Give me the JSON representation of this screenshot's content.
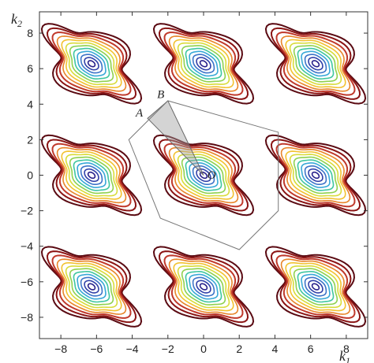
{
  "chart_data": {
    "type": "contour",
    "title": "",
    "xlabel": {
      "base": "k",
      "sub": "1"
    },
    "ylabel": {
      "base": "k",
      "sub": "2"
    },
    "xlim": [
      -9.2,
      9.2
    ],
    "ylim": [
      -9.2,
      9.2
    ],
    "xticks": [
      -8,
      -6,
      -4,
      -2,
      0,
      2,
      4,
      6,
      8
    ],
    "yticks": [
      -8,
      -6,
      -4,
      -2,
      0,
      2,
      4,
      6,
      8
    ],
    "xtick_labels": [
      "−8",
      "−6",
      "−4",
      "−2",
      "0",
      "2",
      "4",
      "6",
      "8"
    ],
    "ytick_labels": [
      "−8",
      "−6",
      "−4",
      "−2",
      "0",
      "2",
      "4",
      "6",
      "8"
    ],
    "grid": false,
    "contour_centers": [
      [
        -6.28,
        6.28
      ],
      [
        0,
        6.28
      ],
      [
        6.28,
        6.28
      ],
      [
        -6.28,
        0
      ],
      [
        0,
        0
      ],
      [
        6.28,
        0
      ],
      [
        -6.28,
        -6.28
      ],
      [
        0,
        -6.28
      ],
      [
        6.28,
        -6.28
      ]
    ],
    "contour_levels_colors": [
      "#5a0a12",
      "#8b1414",
      "#c0392b",
      "#e8852a",
      "#f2c230",
      "#d8dc3a",
      "#8fd14f",
      "#3fc6a0",
      "#38a8d8",
      "#3b73c8",
      "#3040a8",
      "#28208a"
    ],
    "brillouin_zone": {
      "vertices": [
        [
          4.19,
          2.42
        ],
        [
          -2.0,
          4.19
        ],
        [
          -4.19,
          2.0
        ],
        [
          -2.42,
          -2.42
        ],
        [
          2.0,
          -4.19
        ],
        [
          4.19,
          -2.0
        ]
      ]
    },
    "irreducible_wedge": {
      "vertices": [
        [
          0,
          0
        ],
        [
          -2.0,
          4.19
        ],
        [
          -3.14,
          3.2
        ]
      ]
    },
    "annotations": [
      {
        "text": "A",
        "x": -3.6,
        "y": 3.3
      },
      {
        "text": "B",
        "x": -2.4,
        "y": 4.35
      },
      {
        "text": "O",
        "x": 0.45,
        "y": -0.2
      }
    ]
  }
}
